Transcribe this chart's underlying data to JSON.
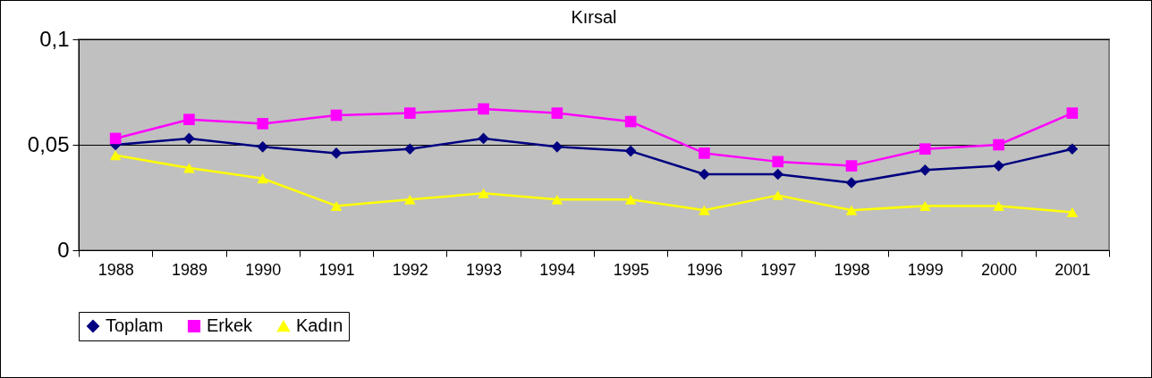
{
  "chart_data": {
    "type": "line",
    "title": "Kırsal",
    "categories": [
      "1988",
      "1989",
      "1990",
      "1991",
      "1992",
      "1993",
      "1994",
      "1995",
      "1996",
      "1997",
      "1998",
      "1999",
      "2000",
      "2001"
    ],
    "series": [
      {
        "name": "Toplam",
        "color": "#000080",
        "marker": "diamond",
        "values": [
          0.05,
          0.053,
          0.049,
          0.046,
          0.048,
          0.053,
          0.049,
          0.047,
          0.036,
          0.036,
          0.032,
          0.038,
          0.04,
          0.048
        ]
      },
      {
        "name": "Erkek",
        "color": "#ff00ff",
        "marker": "square",
        "values": [
          0.053,
          0.062,
          0.06,
          0.064,
          0.065,
          0.067,
          0.065,
          0.061,
          0.046,
          0.042,
          0.04,
          0.048,
          0.05,
          0.065
        ]
      },
      {
        "name": "Kadın",
        "color": "#ffff00",
        "marker": "triangle",
        "values": [
          0.045,
          0.039,
          0.034,
          0.021,
          0.024,
          0.027,
          0.024,
          0.024,
          0.019,
          0.026,
          0.019,
          0.021,
          0.021,
          0.018
        ]
      }
    ],
    "ylim": [
      0,
      0.1
    ],
    "yticks": [
      {
        "value": 0,
        "label": "0"
      },
      {
        "value": 0.05,
        "label": "0,05"
      },
      {
        "value": 0.1,
        "label": "0,1"
      }
    ],
    "grid": "y",
    "legend": "bottom",
    "line_style": "solid"
  }
}
